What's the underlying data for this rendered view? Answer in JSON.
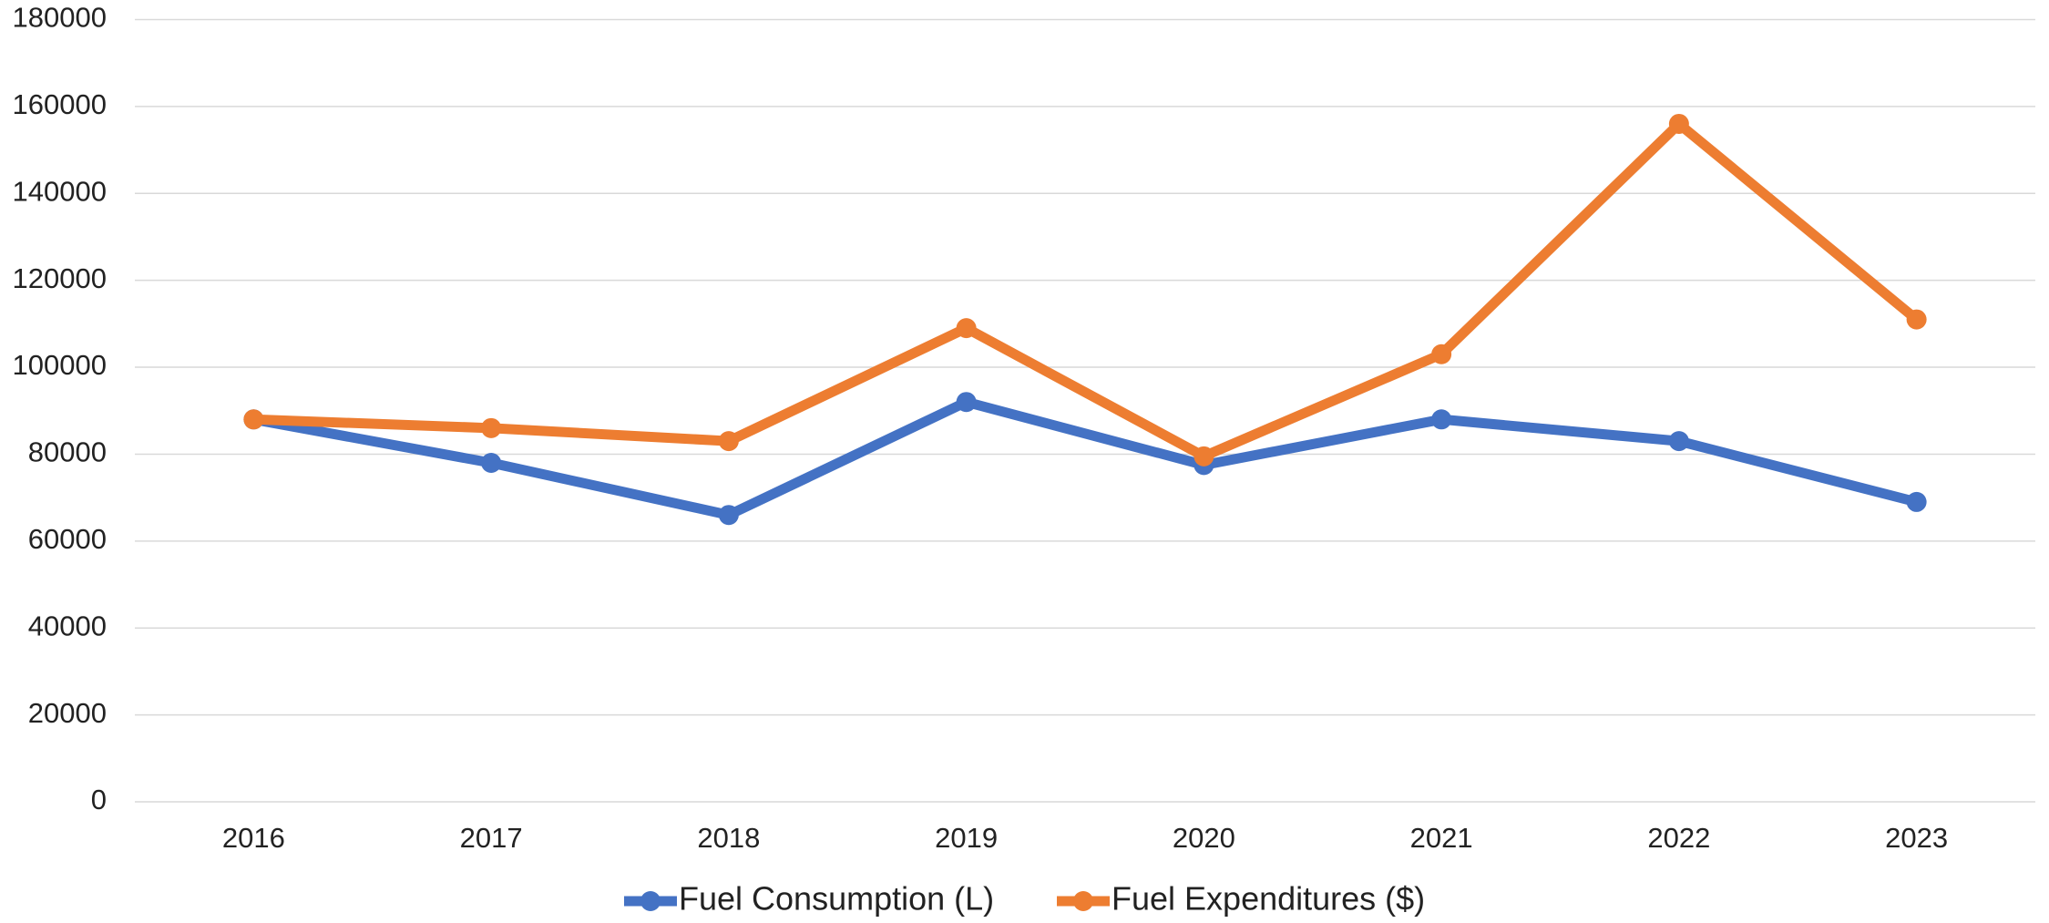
{
  "chart_data": {
    "type": "line",
    "categories": [
      "2016",
      "2017",
      "2018",
      "2019",
      "2020",
      "2021",
      "2022",
      "2023"
    ],
    "series": [
      {
        "name": "Fuel Consumption (L)",
        "color": "#4472c4",
        "values": [
          88000,
          78000,
          66000,
          92000,
          77500,
          88000,
          83000,
          69000
        ]
      },
      {
        "name": "Fuel Expenditures ($)",
        "color": "#ed7d31",
        "values": [
          88000,
          86000,
          83000,
          109000,
          79500,
          103000,
          156000,
          111000
        ]
      }
    ],
    "ylim": [
      0,
      180000
    ],
    "yticks": [
      0,
      20000,
      40000,
      60000,
      80000,
      100000,
      120000,
      140000,
      160000,
      180000
    ],
    "grid": true,
    "legend": "bottom"
  }
}
